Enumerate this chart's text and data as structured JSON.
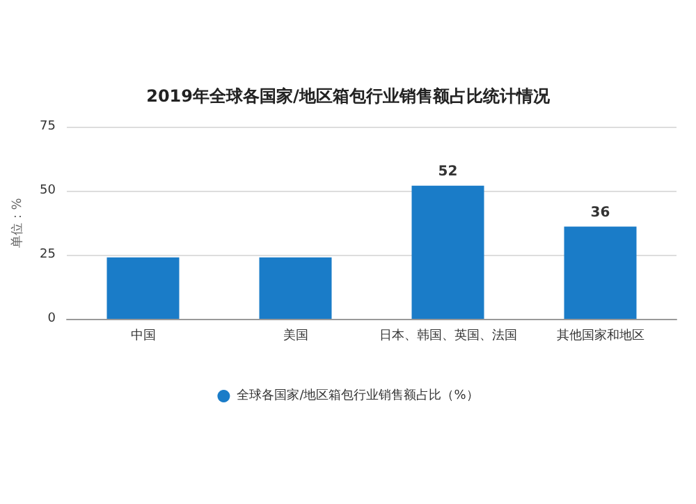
{
  "chart_data": {
    "type": "bar",
    "title": "2019年全球各国家/地区箱包行业销售额占比统计情况",
    "ylabel": "单位：%",
    "categories": [
      "中国",
      "美国",
      "日本、韩国、英国、法国",
      "其他国家和地区"
    ],
    "series": [
      {
        "name": "全球各国家/地区箱包行业销售额占比（%）",
        "color": "#1a7cc8",
        "values": [
          24,
          24,
          52,
          36
        ],
        "value_labels": [
          null,
          null,
          "52",
          "36"
        ]
      }
    ],
    "ylim": [
      0,
      75
    ],
    "yticks": [
      0,
      25,
      50,
      75
    ],
    "grid": "y",
    "legend": "bottom"
  }
}
